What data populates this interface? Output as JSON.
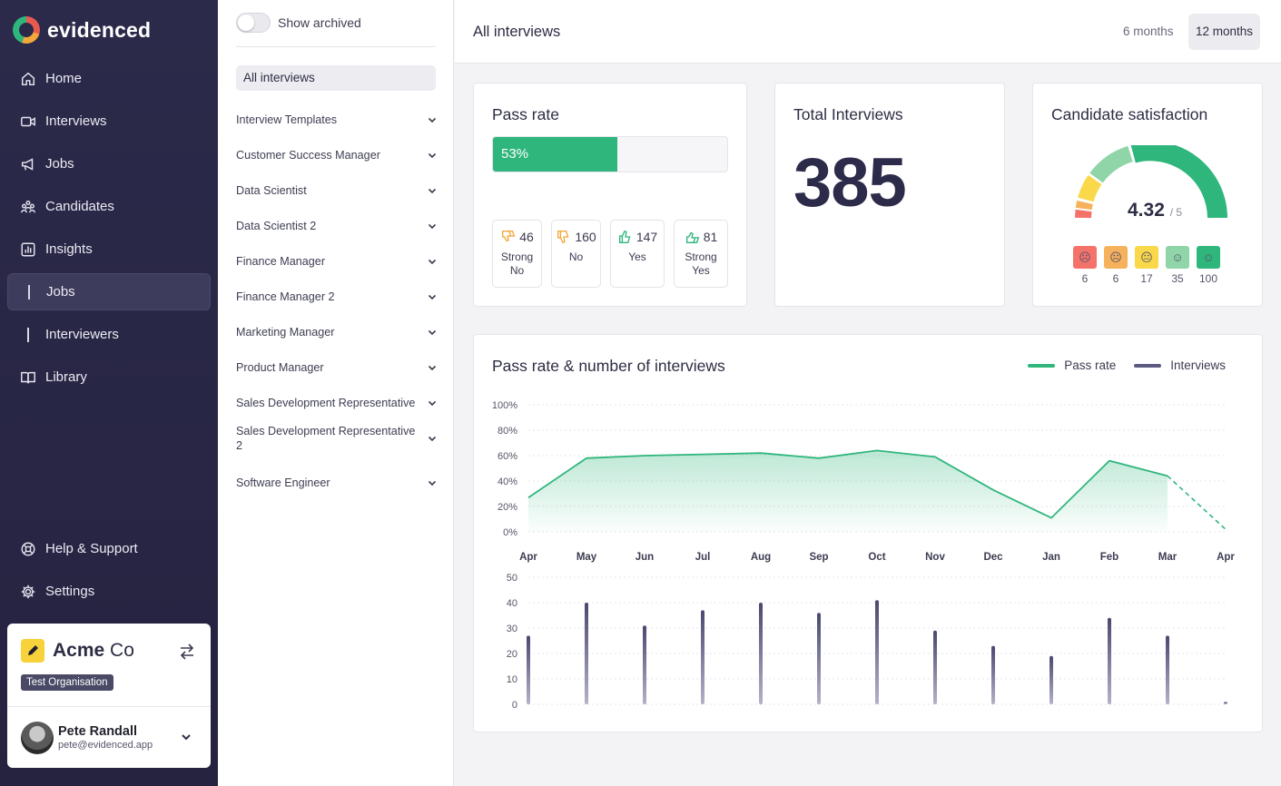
{
  "app": {
    "logo_text": "evidenced"
  },
  "sidebar": {
    "nav": [
      {
        "label": "Home",
        "icon": "home-icon"
      },
      {
        "label": "Interviews",
        "icon": "video-icon"
      },
      {
        "label": "Jobs",
        "icon": "megaphone-icon"
      },
      {
        "label": "Candidates",
        "icon": "people-icon"
      },
      {
        "label": "Insights",
        "icon": "chart-icon"
      },
      {
        "label": "Jobs",
        "icon": "bar-marker",
        "active": true
      },
      {
        "label": "Interviewers",
        "icon": "bar-marker"
      },
      {
        "label": "Library",
        "icon": "book-icon"
      }
    ],
    "bottom": [
      {
        "label": "Help & Support",
        "icon": "lifebuoy-icon"
      },
      {
        "label": "Settings",
        "icon": "gear-icon"
      }
    ],
    "org": {
      "name_bold": "Acme",
      "name_rest": " Co",
      "badge": "Test Organisation"
    },
    "user": {
      "name": "Pete Randall",
      "email": "pete@evidenced.app"
    }
  },
  "filters": {
    "toggle_label": "Show archived",
    "selected": "All interviews",
    "items": [
      "Interview Templates",
      "Customer Success Manager",
      "Data Scientist",
      "Data Scientist 2",
      "Finance Manager",
      "Finance Manager 2",
      "Marketing Manager",
      "Product Manager",
      "Sales Development Representative",
      "Sales Development Representative 2",
      "Software Engineer"
    ]
  },
  "header": {
    "title": "All interviews",
    "periods": [
      "6 months",
      "12 months"
    ],
    "active_period": "12 months"
  },
  "pass_rate": {
    "title": "Pass rate",
    "value": 53,
    "value_label": "53%",
    "votes": [
      {
        "count": "46",
        "label": "Strong No",
        "icon": "double-thumbs-down-icon"
      },
      {
        "count": "160",
        "label": "No",
        "icon": "thumbs-down-icon"
      },
      {
        "count": "147",
        "label": "Yes",
        "icon": "thumbs-up-icon"
      },
      {
        "count": "81",
        "label": "Strong Yes",
        "icon": "double-thumbs-up-icon"
      }
    ]
  },
  "total_interviews": {
    "title": "Total Interviews",
    "value": "385"
  },
  "satisfaction": {
    "title": "Candidate satisfaction",
    "score": "4.32",
    "max": "/ 5",
    "faces": [
      {
        "count": "6",
        "color": "#f4726a",
        "glyph": "☹"
      },
      {
        "count": "6",
        "color": "#f6b15d",
        "glyph": "☹"
      },
      {
        "count": "17",
        "color": "#f9d84a",
        "glyph": "😐"
      },
      {
        "count": "35",
        "color": "#8fd5a8",
        "glyph": "☺"
      },
      {
        "count": "100",
        "color": "#2fb67c",
        "glyph": "☺"
      }
    ],
    "colors": {
      "green": "#2fb67c",
      "light_green": "#8fd5a8",
      "yellow": "#f9d84a",
      "orange": "#f6b15d",
      "red": "#f4726a"
    }
  },
  "trend": {
    "title": "Pass rate & number of interviews",
    "legend": [
      {
        "label": "Pass rate",
        "color": "#2fb67c"
      },
      {
        "label": "Interviews",
        "color": "#5c5a80"
      }
    ]
  },
  "chart_data": [
    {
      "type": "area",
      "x": [
        "Apr",
        "May",
        "Jun",
        "Jul",
        "Aug",
        "Sep",
        "Oct",
        "Nov",
        "Dec",
        "Jan",
        "Feb",
        "Mar",
        "Apr"
      ],
      "series": [
        {
          "name": "Pass rate",
          "values": [
            27,
            58,
            60,
            61,
            62,
            58,
            64,
            59,
            33,
            11,
            56,
            44,
            2
          ]
        }
      ],
      "y_ticks": [
        "100%",
        "80%",
        "60%",
        "40%",
        "20%",
        "0%"
      ],
      "ylim": [
        0,
        100
      ],
      "last_segment_dashed": true,
      "color": "#2fb67c"
    },
    {
      "type": "bar",
      "x": [
        "Apr",
        "May",
        "Jun",
        "Jul",
        "Aug",
        "Sep",
        "Oct",
        "Nov",
        "Dec",
        "Jan",
        "Feb",
        "Mar",
        "Apr"
      ],
      "series": [
        {
          "name": "Interviews",
          "values": [
            27,
            40,
            31,
            37,
            40,
            36,
            41,
            29,
            23,
            19,
            34,
            27,
            1
          ]
        }
      ],
      "y_ticks": [
        "50",
        "40",
        "30",
        "20",
        "10",
        "0"
      ],
      "ylim": [
        0,
        50
      ],
      "color": "#5c5a80"
    }
  ]
}
